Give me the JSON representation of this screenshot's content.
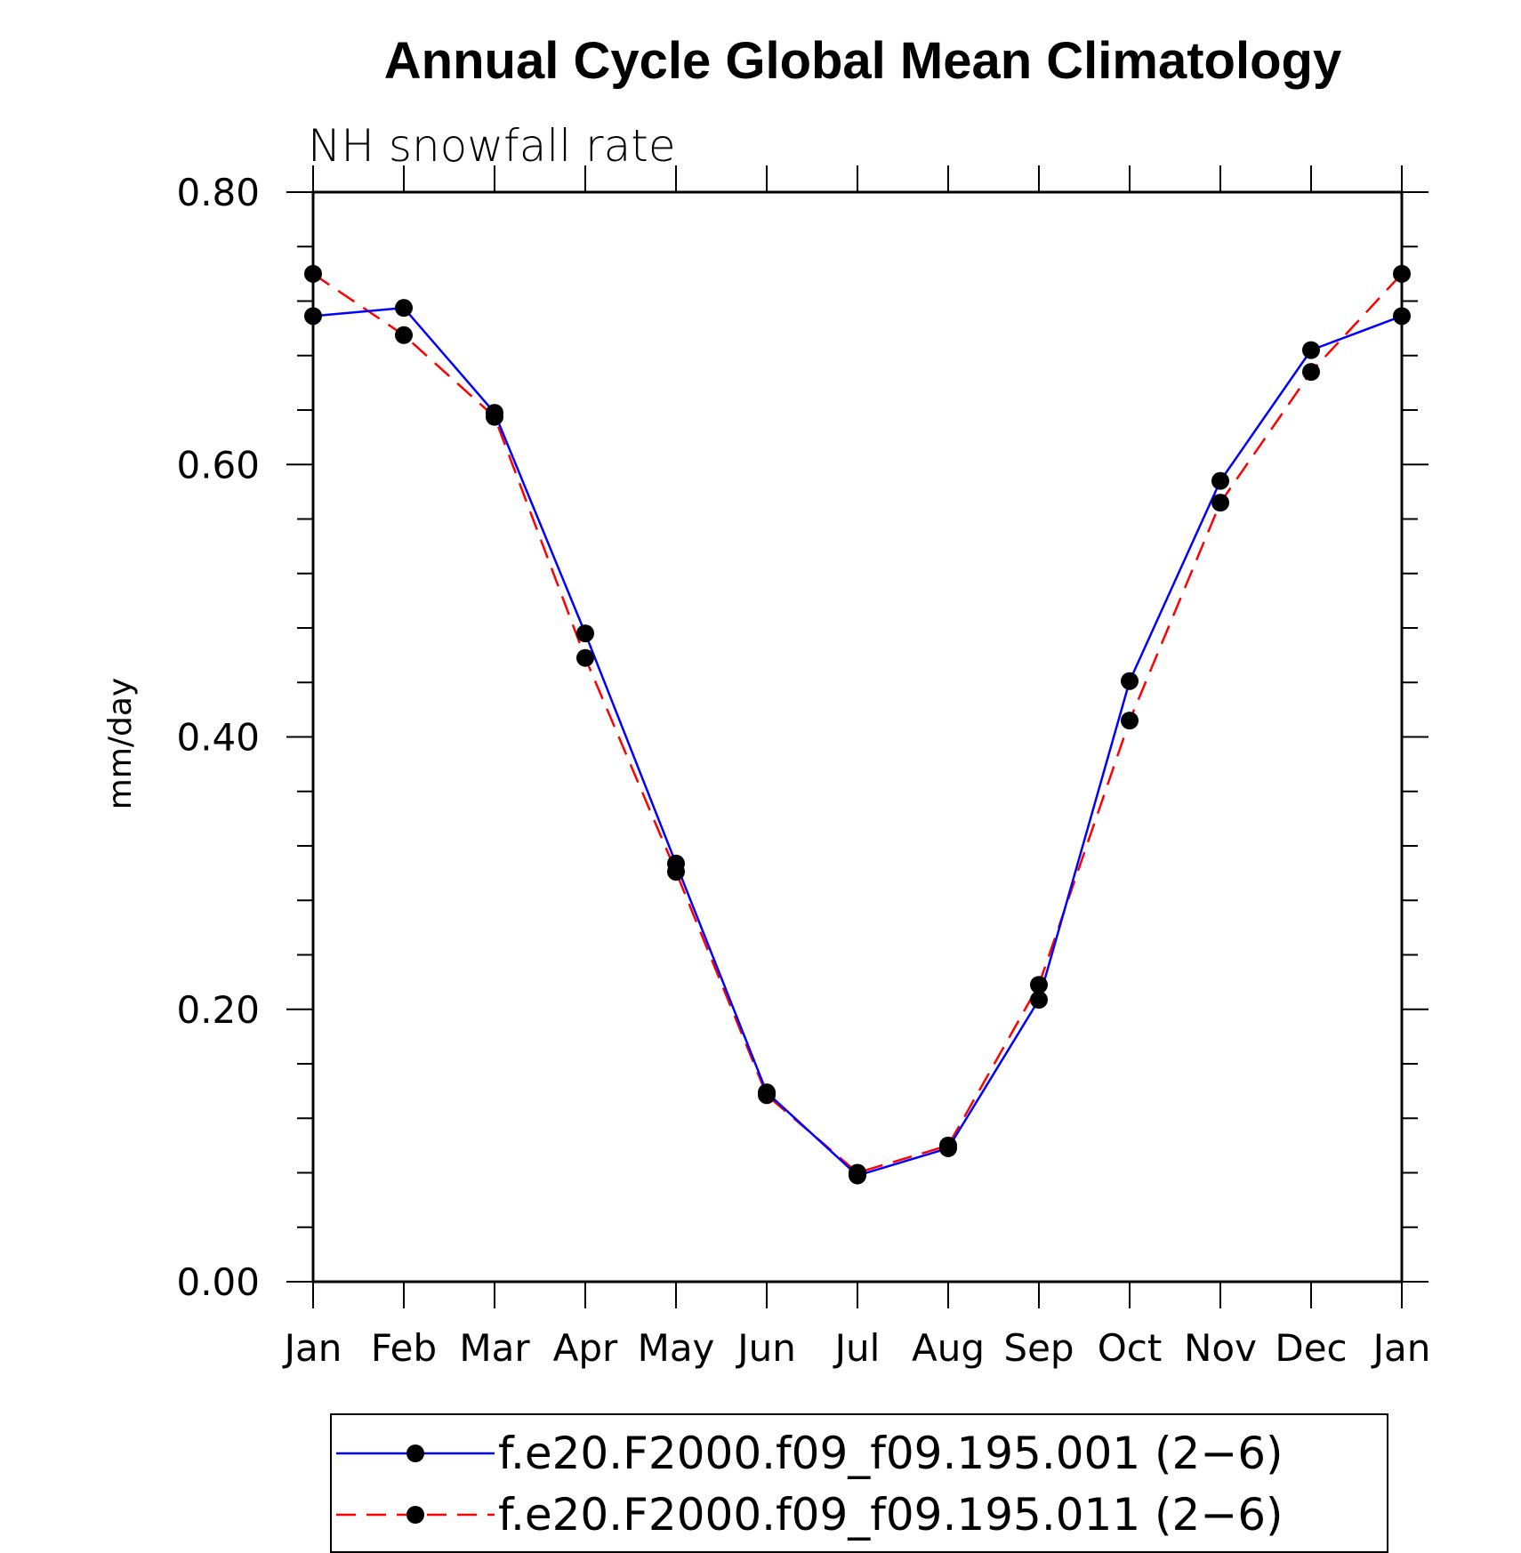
{
  "chart_data": {
    "type": "line",
    "title": "Annual Cycle Global Mean Climatology",
    "subtitle": "NH snowfall rate",
    "xlabel": "",
    "ylabel": "mm/day",
    "categories": [
      "Jan",
      "Feb",
      "Mar",
      "Apr",
      "May",
      "Jun",
      "Jul",
      "Aug",
      "Sep",
      "Oct",
      "Nov",
      "Dec",
      "Jan"
    ],
    "ylim": [
      0.0,
      0.8
    ],
    "yticks": [
      "0.00",
      "0.20",
      "0.40",
      "0.60",
      "0.80"
    ],
    "ytick_values": [
      0.0,
      0.2,
      0.4,
      0.6,
      0.8
    ],
    "series": [
      {
        "name": "f.e20.F2000.f09_f09.195.001 (2−6)",
        "color": "#0000ff",
        "style": "solid",
        "values": [
          0.709,
          0.715,
          0.638,
          0.476,
          0.307,
          0.139,
          0.078,
          0.098,
          0.207,
          0.441,
          0.588,
          0.684,
          0.709
        ]
      },
      {
        "name": "f.e20.F2000.f09_f09.195.011 (2−6)",
        "color": "#ff0000",
        "style": "dashed",
        "values": [
          0.74,
          0.695,
          0.635,
          0.458,
          0.301,
          0.137,
          0.08,
          0.1,
          0.218,
          0.412,
          0.572,
          0.668,
          0.74
        ]
      }
    ],
    "legend_position": "bottom"
  }
}
